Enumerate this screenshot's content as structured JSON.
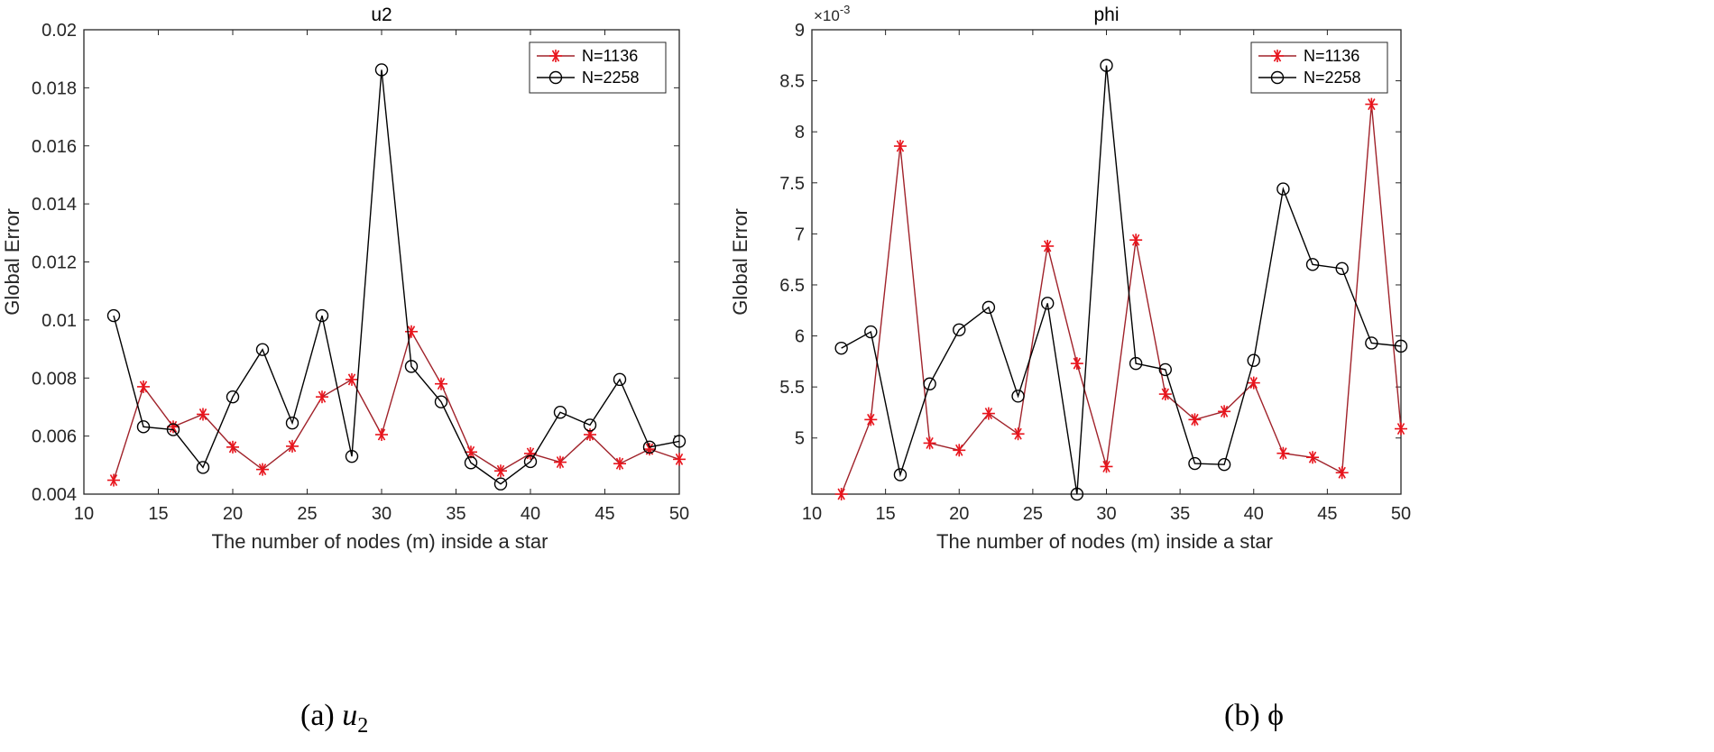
{
  "chart_data": [
    {
      "type": "line",
      "title": "u2",
      "xlabel": "The number of nodes (m) inside a star",
      "ylabel": "Global Error",
      "xlim": [
        10,
        50
      ],
      "ylim": [
        0.004,
        0.02
      ],
      "xticks": [
        10,
        15,
        20,
        25,
        30,
        35,
        40,
        45,
        50
      ],
      "yticks": [
        0.004,
        0.006,
        0.008,
        0.01,
        0.012,
        0.014,
        0.016,
        0.018,
        0.02
      ],
      "ytick_labels": [
        "0.004",
        "0.006",
        "0.008",
        "0.01",
        "0.012",
        "0.014",
        "0.016",
        "0.018",
        "0.02"
      ],
      "exponent_label": "",
      "legend_position": "top-right",
      "x": [
        12,
        14,
        16,
        18,
        20,
        22,
        24,
        26,
        28,
        30,
        32,
        34,
        36,
        38,
        40,
        42,
        44,
        46,
        48,
        50
      ],
      "series": [
        {
          "name": "N=1136",
          "marker": "asterisk",
          "color": "#a0222a",
          "marker_color": "#e8141c",
          "values": [
            0.00448,
            0.0077,
            0.00632,
            0.00675,
            0.00562,
            0.00485,
            0.00565,
            0.00735,
            0.00795,
            0.00605,
            0.0096,
            0.0078,
            0.00545,
            0.0048,
            0.0054,
            0.0051,
            0.00605,
            0.00505,
            0.00555,
            0.0052
          ]
        },
        {
          "name": "N=2258",
          "marker": "circle",
          "color": "#000000",
          "marker_color": "#000000",
          "values": [
            0.01015,
            0.00632,
            0.00622,
            0.00492,
            0.00735,
            0.00898,
            0.00645,
            0.01015,
            0.0053,
            0.01862,
            0.0084,
            0.00718,
            0.00508,
            0.00435,
            0.00512,
            0.00682,
            0.00638,
            0.00795,
            0.00562,
            0.00582
          ]
        }
      ]
    },
    {
      "type": "line",
      "title": "phi",
      "xlabel": "The number of nodes (m) inside a star",
      "ylabel": "Global Error",
      "xlim": [
        10,
        50
      ],
      "ylim": [
        4.45,
        9
      ],
      "xticks": [
        10,
        15,
        20,
        25,
        30,
        35,
        40,
        45,
        50
      ],
      "yticks": [
        5,
        5.5,
        6,
        6.5,
        7,
        7.5,
        8,
        8.5,
        9
      ],
      "ytick_labels": [
        "5",
        "5.5",
        "6",
        "6.5",
        "7",
        "7.5",
        "8",
        "8.5",
        "9"
      ],
      "exponent_label": "×10",
      "exponent_power": "-3",
      "legend_position": "top-right",
      "x": [
        12,
        14,
        16,
        18,
        20,
        22,
        24,
        26,
        28,
        30,
        32,
        34,
        36,
        38,
        40,
        42,
        44,
        46,
        48,
        50
      ],
      "series": [
        {
          "name": "N=1136",
          "marker": "asterisk",
          "color": "#a0222a",
          "marker_color": "#e8141c",
          "values": [
            4.45,
            5.18,
            7.86,
            4.95,
            4.88,
            5.24,
            5.04,
            6.88,
            5.73,
            4.72,
            6.94,
            5.43,
            5.18,
            5.26,
            5.54,
            4.85,
            4.81,
            4.66,
            8.27,
            5.09
          ]
        },
        {
          "name": "N=2258",
          "marker": "circle",
          "color": "#000000",
          "marker_color": "#000000",
          "values": [
            5.88,
            6.04,
            4.64,
            5.53,
            6.06,
            6.28,
            5.41,
            6.32,
            4.45,
            8.65,
            5.73,
            5.67,
            4.75,
            4.74,
            5.76,
            7.44,
            6.7,
            6.66,
            5.93,
            5.9
          ]
        }
      ]
    }
  ],
  "captions": {
    "a": {
      "prefix": "(a) ",
      "var": "u",
      "sub": "2"
    },
    "b": {
      "prefix": "(b) ",
      "symbol": "ϕ"
    }
  }
}
